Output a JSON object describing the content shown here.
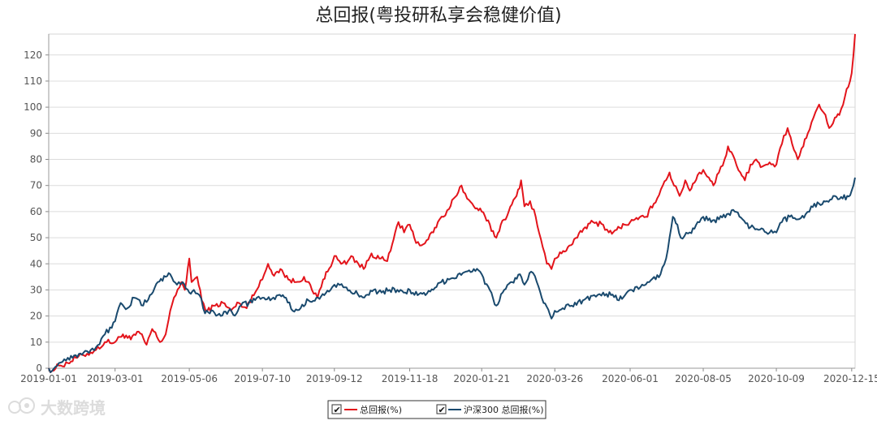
{
  "watermark": "大数跨境",
  "chart_data": {
    "type": "line",
    "title": "总回报(粤投研私享会稳健价值)",
    "xlabel": "",
    "ylabel": "",
    "ylim": [
      0,
      128
    ],
    "yticks": [
      0,
      10,
      20,
      30,
      40,
      50,
      60,
      70,
      80,
      90,
      100,
      110,
      120
    ],
    "x_range": [
      "2019-01-01",
      "2020-12-18"
    ],
    "xticks": [
      "2019-01-01",
      "2019-03-01",
      "2019-05-06",
      "2019-07-10",
      "2019-09-12",
      "2019-11-18",
      "2020-01-21",
      "2020-03-26",
      "2020-06-01",
      "2020-08-05",
      "2020-10-09",
      "2020-12-15"
    ],
    "grid": true,
    "legend_position": "bottom-center",
    "series": [
      {
        "name": "总回报(%)",
        "color": "#e3141b",
        "points": [
          [
            "2019-01-01",
            0
          ],
          [
            "2019-01-04",
            -1
          ],
          [
            "2019-01-10",
            1
          ],
          [
            "2019-01-18",
            2
          ],
          [
            "2019-01-25",
            4
          ],
          [
            "2019-02-01",
            5
          ],
          [
            "2019-02-12",
            7
          ],
          [
            "2019-02-20",
            10
          ],
          [
            "2019-03-01",
            10
          ],
          [
            "2019-03-08",
            13
          ],
          [
            "2019-03-15",
            11
          ],
          [
            "2019-03-22",
            14
          ],
          [
            "2019-03-29",
            9
          ],
          [
            "2019-04-03",
            15
          ],
          [
            "2019-04-10",
            10
          ],
          [
            "2019-04-15",
            13
          ],
          [
            "2019-04-19",
            22
          ],
          [
            "2019-04-24",
            28
          ],
          [
            "2019-04-29",
            33
          ],
          [
            "2019-05-02",
            30
          ],
          [
            "2019-05-06",
            42
          ],
          [
            "2019-05-08",
            33
          ],
          [
            "2019-05-13",
            35
          ],
          [
            "2019-05-17",
            26
          ],
          [
            "2019-05-22",
            22
          ],
          [
            "2019-05-29",
            24
          ],
          [
            "2019-06-05",
            25
          ],
          [
            "2019-06-12",
            22
          ],
          [
            "2019-06-19",
            25
          ],
          [
            "2019-06-26",
            23
          ],
          [
            "2019-07-01",
            28
          ],
          [
            "2019-07-05",
            30
          ],
          [
            "2019-07-10",
            34
          ],
          [
            "2019-07-15",
            40
          ],
          [
            "2019-07-19",
            36
          ],
          [
            "2019-07-26",
            38
          ],
          [
            "2019-08-02",
            34
          ],
          [
            "2019-08-09",
            33
          ],
          [
            "2019-08-16",
            35
          ],
          [
            "2019-08-23",
            30
          ],
          [
            "2019-08-28",
            27
          ],
          [
            "2019-09-02",
            34
          ],
          [
            "2019-09-06",
            37
          ],
          [
            "2019-09-12",
            43
          ],
          [
            "2019-09-18",
            40
          ],
          [
            "2019-09-24",
            41
          ],
          [
            "2019-09-27",
            43
          ],
          [
            "2019-10-08",
            38
          ],
          [
            "2019-10-15",
            44
          ],
          [
            "2019-10-22",
            42
          ],
          [
            "2019-10-29",
            41
          ],
          [
            "2019-11-01",
            45
          ],
          [
            "2019-11-05",
            52
          ],
          [
            "2019-11-08",
            56
          ],
          [
            "2019-11-13",
            52
          ],
          [
            "2019-11-18",
            55
          ],
          [
            "2019-11-22",
            50
          ],
          [
            "2019-11-27",
            47
          ],
          [
            "2019-12-03",
            49
          ],
          [
            "2019-12-09",
            52
          ],
          [
            "2019-12-13",
            56
          ],
          [
            "2019-12-18",
            58
          ],
          [
            "2019-12-23",
            61
          ],
          [
            "2019-12-27",
            65
          ],
          [
            "2020-01-03",
            70
          ],
          [
            "2020-01-08",
            65
          ],
          [
            "2020-01-14",
            62
          ],
          [
            "2020-01-21",
            60
          ],
          [
            "2020-02-03",
            50
          ],
          [
            "2020-02-07",
            55
          ],
          [
            "2020-02-14",
            60
          ],
          [
            "2020-02-21",
            66
          ],
          [
            "2020-02-25",
            72
          ],
          [
            "2020-02-28",
            62
          ],
          [
            "2020-03-04",
            64
          ],
          [
            "2020-03-09",
            58
          ],
          [
            "2020-03-12",
            52
          ],
          [
            "2020-03-17",
            44
          ],
          [
            "2020-03-19",
            40
          ],
          [
            "2020-03-23",
            38
          ],
          [
            "2020-03-26",
            42
          ],
          [
            "2020-04-01",
            44
          ],
          [
            "2020-04-08",
            47
          ],
          [
            "2020-04-15",
            50
          ],
          [
            "2020-04-22",
            54
          ],
          [
            "2020-04-29",
            56
          ],
          [
            "2020-05-08",
            55
          ],
          [
            "2020-05-13",
            52
          ],
          [
            "2020-05-20",
            53
          ],
          [
            "2020-05-27",
            55
          ],
          [
            "2020-06-01",
            56
          ],
          [
            "2020-06-08",
            57
          ],
          [
            "2020-06-15",
            58
          ],
          [
            "2020-06-22",
            63
          ],
          [
            "2020-06-30",
            70
          ],
          [
            "2020-07-06",
            75
          ],
          [
            "2020-07-10",
            70
          ],
          [
            "2020-07-15",
            66
          ],
          [
            "2020-07-20",
            72
          ],
          [
            "2020-07-24",
            68
          ],
          [
            "2020-07-31",
            74
          ],
          [
            "2020-08-05",
            76
          ],
          [
            "2020-08-10",
            73
          ],
          [
            "2020-08-14",
            70
          ],
          [
            "2020-08-19",
            75
          ],
          [
            "2020-08-24",
            80
          ],
          [
            "2020-08-27",
            85
          ],
          [
            "2020-09-02",
            80
          ],
          [
            "2020-09-07",
            75
          ],
          [
            "2020-09-11",
            72
          ],
          [
            "2020-09-16",
            78
          ],
          [
            "2020-09-21",
            80
          ],
          [
            "2020-09-25",
            77
          ],
          [
            "2020-09-30",
            78
          ],
          [
            "2020-10-09",
            78
          ],
          [
            "2020-10-14",
            86
          ],
          [
            "2020-10-19",
            92
          ],
          [
            "2020-10-23",
            86
          ],
          [
            "2020-10-28",
            80
          ],
          [
            "2020-11-02",
            85
          ],
          [
            "2020-11-06",
            90
          ],
          [
            "2020-11-11",
            96
          ],
          [
            "2020-11-16",
            101
          ],
          [
            "2020-11-20",
            98
          ],
          [
            "2020-11-25",
            92
          ],
          [
            "2020-11-30",
            96
          ],
          [
            "2020-12-04",
            97
          ],
          [
            "2020-12-09",
            104
          ],
          [
            "2020-12-15",
            113
          ],
          [
            "2020-12-18",
            128
          ]
        ]
      },
      {
        "name": "沪深300 总回报(%)",
        "color": "#1a4a6e",
        "points": [
          [
            "2019-01-01",
            0
          ],
          [
            "2019-01-04",
            -1
          ],
          [
            "2019-01-10",
            2
          ],
          [
            "2019-01-18",
            4
          ],
          [
            "2019-01-25",
            5
          ],
          [
            "2019-02-01",
            6
          ],
          [
            "2019-02-12",
            8
          ],
          [
            "2019-02-20",
            13
          ],
          [
            "2019-03-01",
            18
          ],
          [
            "2019-03-06",
            25
          ],
          [
            "2019-03-12",
            23
          ],
          [
            "2019-03-18",
            27
          ],
          [
            "2019-03-26",
            24
          ],
          [
            "2019-04-01",
            28
          ],
          [
            "2019-04-08",
            33
          ],
          [
            "2019-04-15",
            35
          ],
          [
            "2019-04-19",
            36
          ],
          [
            "2019-04-25",
            32
          ],
          [
            "2019-04-30",
            33
          ],
          [
            "2019-05-06",
            29
          ],
          [
            "2019-05-10",
            30
          ],
          [
            "2019-05-15",
            28
          ],
          [
            "2019-05-20",
            21
          ],
          [
            "2019-05-27",
            22
          ],
          [
            "2019-06-03",
            20
          ],
          [
            "2019-06-10",
            22
          ],
          [
            "2019-06-17",
            21
          ],
          [
            "2019-06-21",
            24
          ],
          [
            "2019-06-28",
            25
          ],
          [
            "2019-07-05",
            27
          ],
          [
            "2019-07-10",
            27
          ],
          [
            "2019-07-17",
            26
          ],
          [
            "2019-07-24",
            28
          ],
          [
            "2019-07-31",
            27
          ],
          [
            "2019-08-06",
            22
          ],
          [
            "2019-08-13",
            23
          ],
          [
            "2019-08-20",
            26
          ],
          [
            "2019-08-27",
            27
          ],
          [
            "2019-09-03",
            28
          ],
          [
            "2019-09-10",
            31
          ],
          [
            "2019-09-12",
            32
          ],
          [
            "2019-09-20",
            31
          ],
          [
            "2019-09-27",
            29
          ],
          [
            "2019-10-10",
            28
          ],
          [
            "2019-10-17",
            30
          ],
          [
            "2019-10-24",
            29
          ],
          [
            "2019-10-31",
            30
          ],
          [
            "2019-11-07",
            30
          ],
          [
            "2019-11-14",
            29
          ],
          [
            "2019-11-18",
            30
          ],
          [
            "2019-11-25",
            28
          ],
          [
            "2019-12-02",
            28
          ],
          [
            "2019-12-09",
            30
          ],
          [
            "2019-12-16",
            33
          ],
          [
            "2019-12-23",
            34
          ],
          [
            "2019-12-31",
            36
          ],
          [
            "2020-01-07",
            37
          ],
          [
            "2020-01-14",
            38
          ],
          [
            "2020-01-21",
            36
          ],
          [
            "2020-02-03",
            24
          ],
          [
            "2020-02-10",
            30
          ],
          [
            "2020-02-17",
            33
          ],
          [
            "2020-02-24",
            36
          ],
          [
            "2020-02-28",
            32
          ],
          [
            "2020-03-05",
            37
          ],
          [
            "2020-03-10",
            33
          ],
          [
            "2020-03-16",
            25
          ],
          [
            "2020-03-23",
            19
          ],
          [
            "2020-03-26",
            22
          ],
          [
            "2020-04-02",
            23
          ],
          [
            "2020-04-10",
            24
          ],
          [
            "2020-04-20",
            26
          ],
          [
            "2020-04-30",
            28
          ],
          [
            "2020-05-08",
            29
          ],
          [
            "2020-05-15",
            28
          ],
          [
            "2020-05-22",
            26
          ],
          [
            "2020-05-29",
            29
          ],
          [
            "2020-06-01",
            30
          ],
          [
            "2020-06-10",
            31
          ],
          [
            "2020-06-18",
            33
          ],
          [
            "2020-06-28",
            36
          ],
          [
            "2020-07-03",
            42
          ],
          [
            "2020-07-06",
            50
          ],
          [
            "2020-07-09",
            58
          ],
          [
            "2020-07-13",
            55
          ],
          [
            "2020-07-16",
            50
          ],
          [
            "2020-07-24",
            52
          ],
          [
            "2020-07-31",
            56
          ],
          [
            "2020-08-05",
            58
          ],
          [
            "2020-08-12",
            56
          ],
          [
            "2020-08-19",
            57
          ],
          [
            "2020-08-26",
            59
          ],
          [
            "2020-09-02",
            60
          ],
          [
            "2020-09-09",
            57
          ],
          [
            "2020-09-16",
            54
          ],
          [
            "2020-09-23",
            53
          ],
          [
            "2020-09-30",
            52
          ],
          [
            "2020-10-09",
            52
          ],
          [
            "2020-10-14",
            56
          ],
          [
            "2020-10-21",
            58
          ],
          [
            "2020-10-28",
            57
          ],
          [
            "2020-11-04",
            59
          ],
          [
            "2020-11-09",
            62
          ],
          [
            "2020-11-16",
            63
          ],
          [
            "2020-11-23",
            64
          ],
          [
            "2020-11-30",
            66
          ],
          [
            "2020-12-07",
            65
          ],
          [
            "2020-12-11",
            66
          ],
          [
            "2020-12-15",
            68
          ],
          [
            "2020-12-18",
            73
          ]
        ]
      }
    ]
  }
}
